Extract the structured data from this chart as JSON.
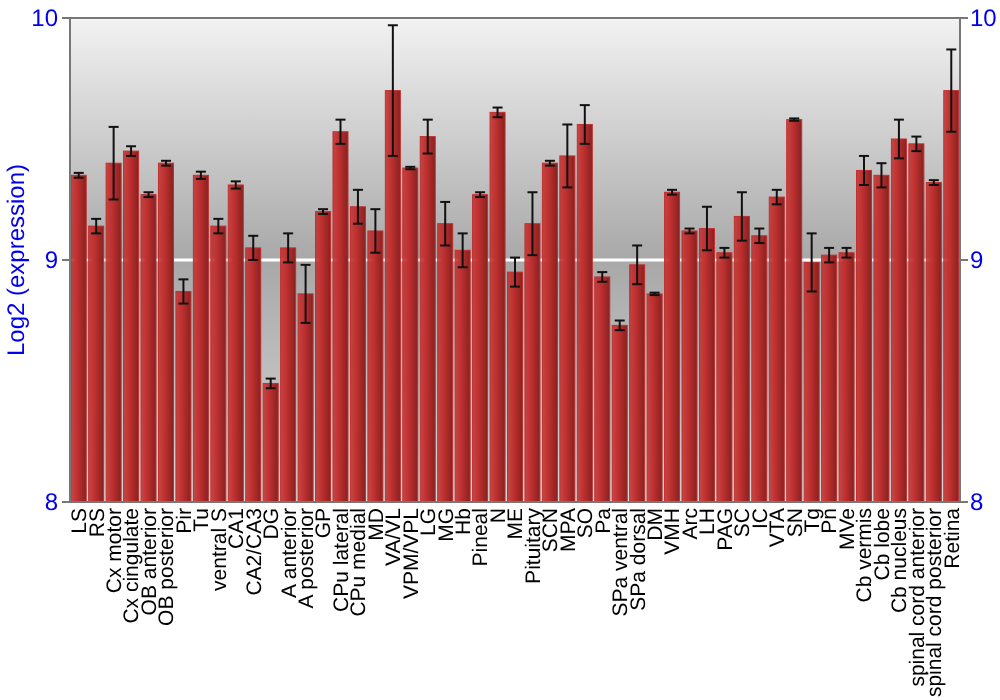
{
  "chart_data": {
    "type": "bar",
    "ylabel": "Log2 (expression)",
    "categories": [
      "LS",
      "RS",
      "Cx motor",
      "Cx cingulate",
      "OB anterior",
      "OB posterior",
      "Pir",
      "Tu",
      "ventral S",
      "CA1",
      "CA2/CA3",
      "DG",
      "A anterior",
      "A posterior",
      "GP",
      "CPu lateral",
      "CPu medial",
      "MD",
      "VA/VL",
      "VPM/VPL",
      "LG",
      "MG",
      "Hb",
      "Pineal",
      "N",
      "ME",
      "Pituitary",
      "SCN",
      "MPA",
      "SO",
      "Pa",
      "SPa ventral",
      "SPa dorsal",
      "DM",
      "VMH",
      "Arc",
      "LH",
      "PAG",
      "SC",
      "IC",
      "VTA",
      "SN",
      "Tg",
      "Pn",
      "MVe",
      "Cb vermis",
      "Cb lobe",
      "Cb nucleus",
      "spinal cord anterior",
      "spinal cord posterior",
      "Retina"
    ],
    "values": [
      9.35,
      9.14,
      9.4,
      9.45,
      9.27,
      9.4,
      8.87,
      9.35,
      9.14,
      9.31,
      9.05,
      8.49,
      9.05,
      8.86,
      9.2,
      9.53,
      9.22,
      9.12,
      9.7,
      9.38,
      9.51,
      9.15,
      9.04,
      9.27,
      9.61,
      8.95,
      9.15,
      9.4,
      9.43,
      9.56,
      8.93,
      8.73,
      8.98,
      8.86,
      9.28,
      9.12,
      9.13,
      9.03,
      9.18,
      9.1,
      9.26,
      9.58,
      8.99,
      9.02,
      9.03,
      9.37,
      9.35,
      9.5,
      9.48,
      9.32,
      9.7
    ],
    "errors": [
      0.01,
      0.03,
      0.15,
      0.02,
      0.01,
      0.01,
      0.05,
      0.015,
      0.03,
      0.015,
      0.05,
      0.02,
      0.06,
      0.12,
      0.01,
      0.05,
      0.07,
      0.09,
      0.27,
      0.005,
      0.07,
      0.09,
      0.07,
      0.01,
      0.02,
      0.06,
      0.13,
      0.01,
      0.13,
      0.08,
      0.02,
      0.02,
      0.08,
      0.005,
      0.01,
      0.01,
      0.09,
      0.02,
      0.1,
      0.03,
      0.03,
      0.005,
      0.12,
      0.03,
      0.02,
      0.06,
      0.05,
      0.08,
      0.03,
      0.01,
      0.17
    ],
    "color": "#c0302f",
    "ylim": [
      8,
      10
    ],
    "yticks": [
      8,
      9,
      10
    ],
    "y2lim": [
      8,
      10
    ],
    "y2ticks": [
      8,
      9,
      10
    ],
    "grid": "y"
  }
}
